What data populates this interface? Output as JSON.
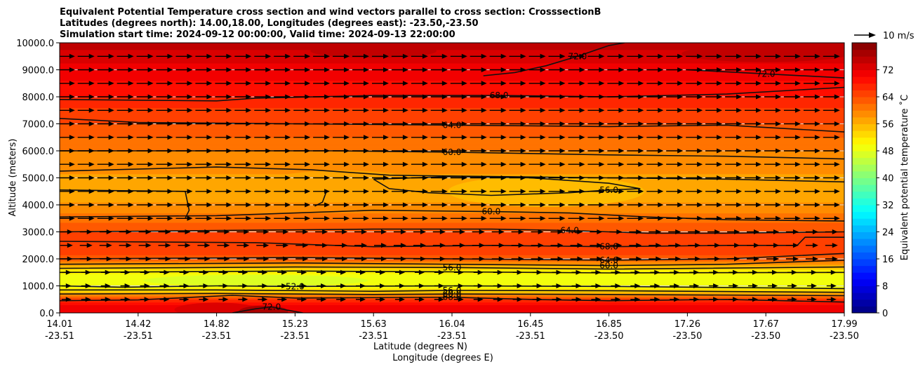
{
  "chart_data": {
    "type": "filled-contour cross section with wind vectors",
    "title": [
      "Equivalent Potential Temperature cross section and wind vectors parallel to cross section: CrosssectionB",
      "Latitudes (degrees north): 14.00,18.00, Longitudes (degrees east): -23.50,-23.50",
      "Simulation start time: 2024-09-12 00:00:00, Valid time: 2024-09-13 22:00:00"
    ],
    "ylabel": "Altitude (meters)",
    "xlabel_lat": "Latitude (degrees N)",
    "xlabel_lon": "Longitude (degrees E)",
    "ylim": [
      0,
      10000
    ],
    "y_ticks": [
      0,
      1000,
      2000,
      3000,
      4000,
      5000,
      6000,
      7000,
      8000,
      9000,
      10000
    ],
    "y_tick_labels": [
      "0.0",
      "1000.0",
      "2000.0",
      "3000.0",
      "4000.0",
      "5000.0",
      "6000.0",
      "7000.0",
      "8000.0",
      "9000.0",
      "10000.0"
    ],
    "x_ticks": [
      {
        "lat": "14.01",
        "lon": "-23.51"
      },
      {
        "lat": "14.42",
        "lon": "-23.51"
      },
      {
        "lat": "14.82",
        "lon": "-23.51"
      },
      {
        "lat": "15.23",
        "lon": "-23.51"
      },
      {
        "lat": "15.63",
        "lon": "-23.51"
      },
      {
        "lat": "16.04",
        "lon": "-23.51"
      },
      {
        "lat": "16.45",
        "lon": "-23.51"
      },
      {
        "lat": "16.85",
        "lon": "-23.50"
      },
      {
        "lat": "17.26",
        "lon": "-23.50"
      },
      {
        "lat": "17.67",
        "lon": "-23.50"
      },
      {
        "lat": "17.99",
        "lon": "-23.50"
      }
    ],
    "colorbar": {
      "label": "Equivalent potential temperature ˚C",
      "range": [
        0,
        80
      ],
      "ticks": [
        "0",
        "8",
        "16",
        "24",
        "32",
        "40",
        "48",
        "56",
        "64",
        "72"
      ],
      "step": 2
    },
    "quiver_key": "10 m/s",
    "profile": [
      {
        "z": 0,
        "theta": 70
      },
      {
        "z": 300,
        "theta": 70
      },
      {
        "z": 500,
        "theta": 66
      },
      {
        "z": 650,
        "theta": 60
      },
      {
        "z": 800,
        "theta": 54
      },
      {
        "z": 1000,
        "theta": 49
      },
      {
        "z": 1200,
        "theta": 48
      },
      {
        "z": 1400,
        "theta": 49
      },
      {
        "z": 1600,
        "theta": 52
      },
      {
        "z": 1800,
        "theta": 58
      },
      {
        "z": 2000,
        "theta": 63
      },
      {
        "z": 2400,
        "theta": 66
      },
      {
        "z": 3000,
        "theta": 64
      },
      {
        "z": 3500,
        "theta": 61
      },
      {
        "z": 4200,
        "theta": 57.5
      },
      {
        "z": 4800,
        "theta": 57
      },
      {
        "z": 5500,
        "theta": 59
      },
      {
        "z": 6000,
        "theta": 60
      },
      {
        "z": 6500,
        "theta": 62
      },
      {
        "z": 7000,
        "theta": 64
      },
      {
        "z": 7600,
        "theta": 66
      },
      {
        "z": 8000,
        "theta": 68
      },
      {
        "z": 8600,
        "theta": 70
      },
      {
        "z": 9000,
        "theta": 71
      },
      {
        "z": 9500,
        "theta": 73
      },
      {
        "z": 10000,
        "theta": 75
      }
    ],
    "contour_lines": [
      {
        "label": "72.0",
        "points": [
          [
            0.54,
            8780
          ],
          [
            0.58,
            8900
          ],
          [
            0.62,
            9150
          ],
          [
            0.66,
            9500
          ],
          [
            0.7,
            9900
          ],
          [
            0.72,
            10000
          ]
        ]
      },
      {
        "label": "72.0",
        "points": [
          [
            0.8,
            9000
          ],
          [
            0.9,
            8850
          ],
          [
            1.0,
            8700
          ]
        ]
      },
      {
        "label": "68.0",
        "points": [
          [
            0.0,
            7900
          ],
          [
            0.2,
            7850
          ],
          [
            0.25,
            7950
          ],
          [
            0.4,
            8050
          ],
          [
            0.56,
            8050
          ],
          [
            0.7,
            8000
          ],
          [
            0.85,
            8100
          ],
          [
            1.0,
            8350
          ]
        ]
      },
      {
        "label": "64.0",
        "points": [
          [
            0.0,
            7200
          ],
          [
            0.1,
            7050
          ],
          [
            0.3,
            7000
          ],
          [
            0.5,
            6950
          ],
          [
            0.7,
            6900
          ],
          [
            0.85,
            6950
          ],
          [
            1.0,
            6700
          ]
        ]
      },
      {
        "label": "60.0",
        "points": [
          [
            0.0,
            6000
          ],
          [
            0.15,
            6000
          ],
          [
            0.35,
            6000
          ],
          [
            0.5,
            5950
          ],
          [
            0.7,
            5850
          ],
          [
            0.85,
            5800
          ],
          [
            1.0,
            5700
          ]
        ]
      },
      {
        "label": "",
        "points": [
          [
            0.0,
            5250
          ],
          [
            0.2,
            5400
          ],
          [
            0.32,
            5300
          ],
          [
            0.42,
            5100
          ],
          [
            0.55,
            5050
          ],
          [
            0.7,
            5000
          ],
          [
            0.85,
            4950
          ],
          [
            1.0,
            4850
          ]
        ]
      },
      {
        "label": "56.0",
        "points": [
          [
            0.4,
            4950
          ],
          [
            0.42,
            4600
          ],
          [
            0.47,
            4450
          ],
          [
            0.55,
            4350
          ],
          [
            0.65,
            4450
          ],
          [
            0.7,
            4550
          ],
          [
            0.74,
            4600
          ],
          [
            0.7,
            4800
          ],
          [
            0.6,
            5000
          ],
          [
            0.5,
            5050
          ],
          [
            0.4,
            4950
          ]
        ]
      },
      {
        "label": "",
        "points": [
          [
            0.0,
            4550
          ],
          [
            0.16,
            4500
          ],
          [
            0.165,
            3800
          ],
          [
            0.16,
            3500
          ]
        ]
      },
      {
        "label": "",
        "points": [
          [
            0.34,
            4500
          ],
          [
            0.335,
            4100
          ],
          [
            0.325,
            3950
          ]
        ]
      },
      {
        "label": "60.0",
        "points": [
          [
            0.0,
            3550
          ],
          [
            0.2,
            3600
          ],
          [
            0.3,
            3700
          ],
          [
            0.4,
            3800
          ],
          [
            0.55,
            3750
          ],
          [
            0.65,
            3700
          ],
          [
            0.75,
            3550
          ],
          [
            0.85,
            3450
          ],
          [
            1.0,
            3400
          ]
        ]
      },
      {
        "label": "64.0",
        "points": [
          [
            0.0,
            3000
          ],
          [
            0.2,
            3050
          ],
          [
            0.4,
            3100
          ],
          [
            0.55,
            3100
          ],
          [
            0.65,
            3050
          ],
          [
            0.75,
            2950
          ],
          [
            0.85,
            2950
          ],
          [
            1.0,
            3000
          ]
        ]
      },
      {
        "label": "68.0",
        "points": [
          [
            0.0,
            2650
          ],
          [
            0.25,
            2600
          ],
          [
            0.4,
            2450
          ],
          [
            0.55,
            2500
          ],
          [
            0.7,
            2450
          ],
          [
            0.85,
            2500
          ],
          [
            0.94,
            2500
          ],
          [
            0.95,
            2800
          ],
          [
            1.0,
            2800
          ]
        ]
      },
      {
        "label": "64.0",
        "points": [
          [
            0.0,
            2000
          ],
          [
            0.3,
            2050
          ],
          [
            0.5,
            2000
          ],
          [
            0.7,
            1950
          ],
          [
            0.85,
            2000
          ],
          [
            1.0,
            2200
          ]
        ]
      },
      {
        "label": "60.0",
        "points": [
          [
            0.0,
            1800
          ],
          [
            0.3,
            1850
          ],
          [
            0.5,
            1800
          ],
          [
            0.7,
            1750
          ],
          [
            0.85,
            1800
          ],
          [
            1.0,
            1950
          ]
        ]
      },
      {
        "label": "56.0",
        "points": [
          [
            0.0,
            1650
          ],
          [
            0.3,
            1700
          ],
          [
            0.5,
            1680
          ],
          [
            0.7,
            1620
          ],
          [
            1.0,
            1700
          ]
        ]
      },
      {
        "label": "",
        "points": [
          [
            0.0,
            1500
          ],
          [
            0.3,
            1550
          ],
          [
            0.5,
            1520
          ],
          [
            0.7,
            1480
          ],
          [
            1.0,
            1500
          ]
        ]
      },
      {
        "label": "52.0",
        "points": [
          [
            0.0,
            1000
          ],
          [
            0.08,
            950
          ],
          [
            0.2,
            1000
          ],
          [
            0.3,
            980
          ],
          [
            0.5,
            1000
          ],
          [
            0.7,
            980
          ],
          [
            1.0,
            900
          ]
        ]
      },
      {
        "label": "56.0",
        "points": [
          [
            0.0,
            850
          ],
          [
            0.2,
            850
          ],
          [
            0.4,
            800
          ],
          [
            0.5,
            830
          ],
          [
            0.7,
            820
          ],
          [
            1.0,
            760
          ]
        ]
      },
      {
        "label": "60.0",
        "points": [
          [
            0.0,
            700
          ],
          [
            0.2,
            720
          ],
          [
            0.4,
            680
          ],
          [
            0.5,
            700
          ],
          [
            0.7,
            680
          ],
          [
            1.0,
            640
          ]
        ]
      },
      {
        "label": "68.0",
        "points": [
          [
            0.0,
            450
          ],
          [
            0.1,
            480
          ],
          [
            0.22,
            650
          ],
          [
            0.3,
            550
          ],
          [
            0.5,
            580
          ],
          [
            0.6,
            500
          ],
          [
            0.7,
            450
          ],
          [
            0.85,
            500
          ],
          [
            1.0,
            400
          ]
        ]
      },
      {
        "label": "72.0",
        "points": [
          [
            0.22,
            0
          ],
          [
            0.25,
            150
          ],
          [
            0.27,
            220
          ],
          [
            0.29,
            100
          ],
          [
            0.31,
            0
          ]
        ]
      }
    ]
  }
}
